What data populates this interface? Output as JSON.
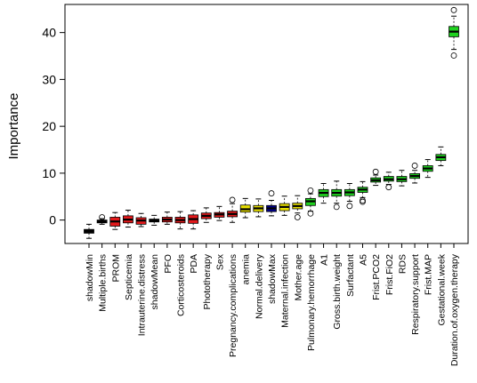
{
  "chart_data": {
    "type": "box",
    "ylabel": "Importance",
    "ylim": [
      -5,
      46
    ],
    "yticks": [
      0,
      10,
      20,
      30,
      40
    ],
    "colors": {
      "black": "#000000",
      "red": "#e31a1c",
      "yellow": "#e8e000",
      "blue": "#00008b",
      "green": "#1fd21f"
    },
    "boxes": [
      {
        "label": "shadowMin",
        "color": "black",
        "q1": -2.8,
        "median": -2.4,
        "q3": -2.0,
        "wlo": -3.9,
        "whi": -0.9,
        "outliers": []
      },
      {
        "label": "Multiple.births",
        "color": "black",
        "q1": -0.6,
        "median": -0.3,
        "q3": 0.0,
        "wlo": -0.9,
        "whi": 0.3,
        "outliers": [
          0.6
        ]
      },
      {
        "label": "PROM",
        "color": "red",
        "q1": -1.3,
        "median": -0.3,
        "q3": 0.6,
        "wlo": -2.0,
        "whi": 1.6,
        "outliers": []
      },
      {
        "label": "Septicemia",
        "color": "red",
        "q1": -0.6,
        "median": 0.1,
        "q3": 0.9,
        "wlo": -1.5,
        "whi": 2.1,
        "outliers": []
      },
      {
        "label": "Intrauterine.distress",
        "color": "red",
        "q1": -0.9,
        "median": -0.1,
        "q3": 0.5,
        "wlo": -1.4,
        "whi": 1.4,
        "outliers": []
      },
      {
        "label": "shadowMean",
        "color": "black",
        "q1": -0.4,
        "median": -0.1,
        "q3": 0.2,
        "wlo": -1.1,
        "whi": 1.0,
        "outliers": []
      },
      {
        "label": "PFO",
        "color": "red",
        "q1": -0.4,
        "median": 0.1,
        "q3": 0.6,
        "wlo": -0.9,
        "whi": 1.7,
        "outliers": []
      },
      {
        "label": "Corticosteroids",
        "color": "red",
        "q1": -0.6,
        "median": 0.0,
        "q3": 0.6,
        "wlo": -1.9,
        "whi": 1.8,
        "outliers": []
      },
      {
        "label": "PDA",
        "color": "red",
        "q1": -0.7,
        "median": 0.2,
        "q3": 1.1,
        "wlo": -1.9,
        "whi": 2.0,
        "outliers": []
      },
      {
        "label": "Phototherapy",
        "color": "red",
        "q1": 0.3,
        "median": 0.9,
        "q3": 1.5,
        "wlo": -0.5,
        "whi": 2.6,
        "outliers": []
      },
      {
        "label": "Sex",
        "color": "red",
        "q1": 0.6,
        "median": 1.2,
        "q3": 1.6,
        "wlo": -0.1,
        "whi": 2.9,
        "outliers": []
      },
      {
        "label": "Pregnancy.complications",
        "color": "red",
        "q1": 0.7,
        "median": 1.3,
        "q3": 1.9,
        "wlo": -0.5,
        "whi": 3.5,
        "outliers": [
          4.3
        ]
      },
      {
        "label": "anemia",
        "color": "yellow",
        "q1": 1.7,
        "median": 2.3,
        "q3": 3.2,
        "wlo": 0.5,
        "whi": 4.6,
        "outliers": []
      },
      {
        "label": "Normal.delivery",
        "color": "yellow",
        "q1": 1.8,
        "median": 2.5,
        "q3": 3.1,
        "wlo": 0.7,
        "whi": 4.5,
        "outliers": []
      },
      {
        "label": "shadowMax",
        "color": "blue",
        "q1": 1.8,
        "median": 2.5,
        "q3": 3.1,
        "wlo": 0.9,
        "whi": 4.2,
        "outliers": [
          5.7
        ]
      },
      {
        "label": "Maternal.infection",
        "color": "yellow",
        "q1": 2.0,
        "median": 2.8,
        "q3": 3.5,
        "wlo": 1.0,
        "whi": 5.1,
        "outliers": []
      },
      {
        "label": "Mother.age",
        "color": "yellow",
        "q1": 2.4,
        "median": 3.0,
        "q3": 3.6,
        "wlo": 1.5,
        "whi": 5.2,
        "outliers": [
          0.6
        ]
      },
      {
        "label": "Pulmonary.hemorrhage",
        "color": "green",
        "q1": 3.1,
        "median": 4.0,
        "q3": 4.6,
        "wlo": 1.9,
        "whi": 5.6,
        "outliers": [
          1.4,
          6.3
        ]
      },
      {
        "label": "A1",
        "color": "green",
        "q1": 5.0,
        "median": 5.8,
        "q3": 6.5,
        "wlo": 3.6,
        "whi": 7.8,
        "outliers": []
      },
      {
        "label": "Gross.birth.weight",
        "color": "green",
        "q1": 5.1,
        "median": 5.8,
        "q3": 6.5,
        "wlo": 3.6,
        "whi": 8.3,
        "outliers": [
          2.8
        ]
      },
      {
        "label": "Surfactant",
        "color": "green",
        "q1": 5.2,
        "median": 5.9,
        "q3": 6.5,
        "wlo": 4.0,
        "whi": 7.8,
        "outliers": [
          3.0
        ]
      },
      {
        "label": "A5",
        "color": "green",
        "q1": 5.9,
        "median": 6.5,
        "q3": 7.0,
        "wlo": 4.8,
        "whi": 8.2,
        "outliers": [
          3.9,
          4.2
        ]
      },
      {
        "label": "Frist.PCO2",
        "color": "green",
        "q1": 8.1,
        "median": 8.5,
        "q3": 9.0,
        "wlo": 7.4,
        "whi": 9.6,
        "outliers": [
          10.3
        ]
      },
      {
        "label": "Frist.FiO2",
        "color": "green",
        "q1": 8.3,
        "median": 8.7,
        "q3": 9.3,
        "wlo": 7.6,
        "whi": 10.2,
        "outliers": [
          7.0
        ]
      },
      {
        "label": "RDS",
        "color": "green",
        "q1": 8.2,
        "median": 8.7,
        "q3": 9.3,
        "wlo": 7.3,
        "whi": 10.6,
        "outliers": []
      },
      {
        "label": "Respiratory.support",
        "color": "green",
        "q1": 8.9,
        "median": 9.4,
        "q3": 9.9,
        "wlo": 7.9,
        "whi": 10.6,
        "outliers": [
          11.6
        ]
      },
      {
        "label": "Frist.MAP",
        "color": "green",
        "q1": 10.4,
        "median": 11.0,
        "q3": 11.6,
        "wlo": 9.1,
        "whi": 12.9,
        "outliers": []
      },
      {
        "label": "Gestational.week",
        "color": "green",
        "q1": 12.7,
        "median": 13.4,
        "q3": 14.0,
        "wlo": 11.6,
        "whi": 15.6,
        "outliers": []
      },
      {
        "label": "Duration.of.oxygen.therapy",
        "color": "green",
        "q1": 39.1,
        "median": 40.2,
        "q3": 41.3,
        "wlo": 36.4,
        "whi": 43.5,
        "outliers": [
          44.8,
          35.1
        ]
      }
    ]
  }
}
